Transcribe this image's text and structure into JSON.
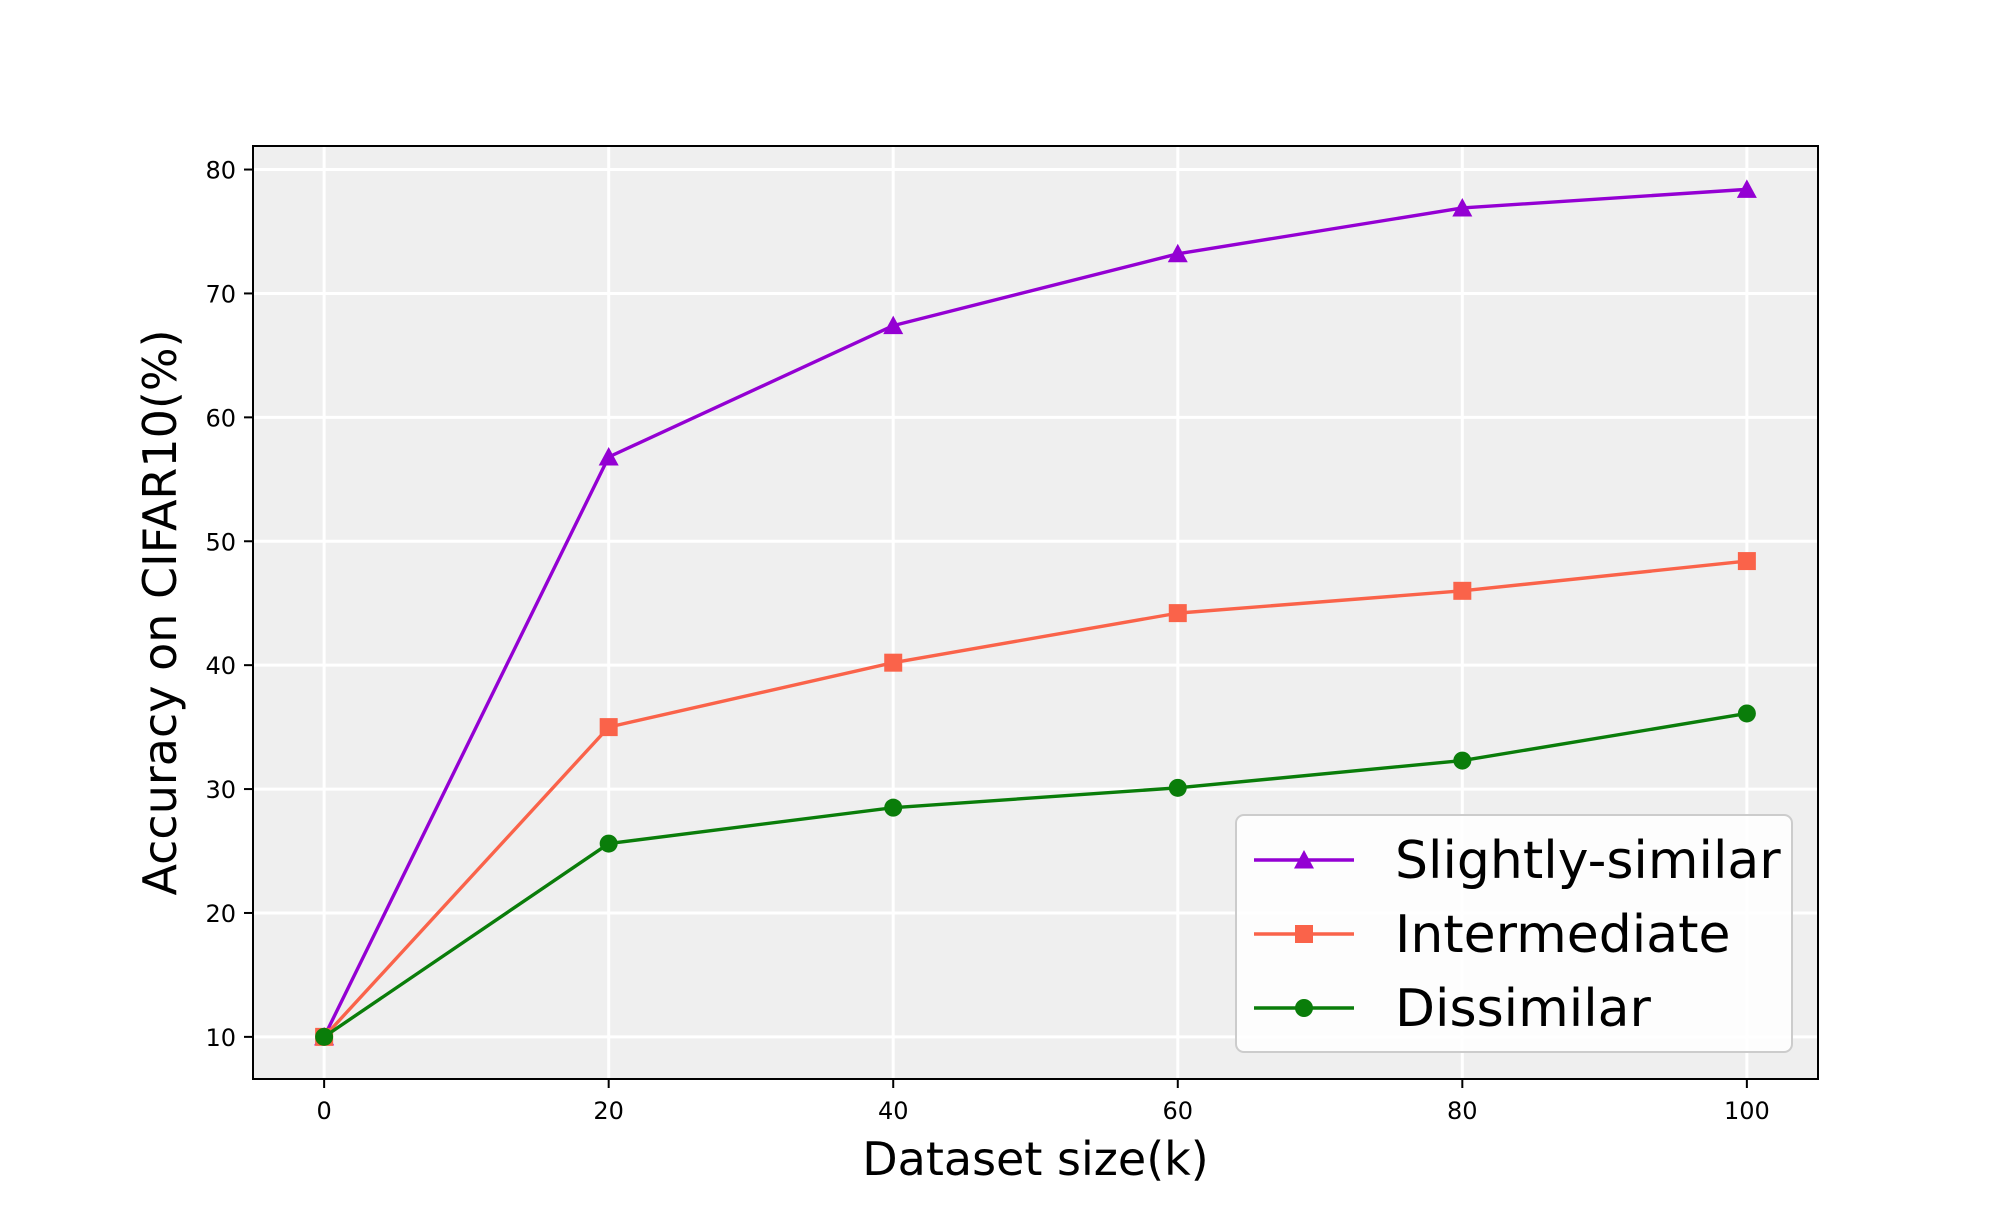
{
  "chart_data": {
    "type": "line",
    "title": "",
    "xlabel": "Dataset size(k)",
    "ylabel": "Accuracy on CIFAR10(%)",
    "x": [
      0,
      20,
      40,
      60,
      80,
      100
    ],
    "xlim": [
      -5,
      105
    ],
    "ylim": [
      6.6,
      81.9
    ],
    "xticks": [
      0,
      20,
      40,
      60,
      80,
      100
    ],
    "yticks": [
      10,
      20,
      30,
      40,
      50,
      60,
      70,
      80
    ],
    "grid": true,
    "legend_position": "lower-right",
    "series": [
      {
        "name": "Slightly-similar",
        "color": "#9400d3",
        "marker": "triangle",
        "values": [
          10,
          56.8,
          67.4,
          73.2,
          76.9,
          78.4
        ]
      },
      {
        "name": "Intermediate",
        "color": "#fa634a",
        "marker": "square",
        "values": [
          10,
          35.0,
          40.2,
          44.2,
          46.0,
          48.4
        ]
      },
      {
        "name": "Dissimilar",
        "color": "#0a7d0a",
        "marker": "circle",
        "values": [
          10,
          25.6,
          28.5,
          30.1,
          32.3,
          36.1
        ]
      }
    ]
  },
  "colors": {
    "plot_background": "#efefef",
    "grid": "#ffffff"
  }
}
